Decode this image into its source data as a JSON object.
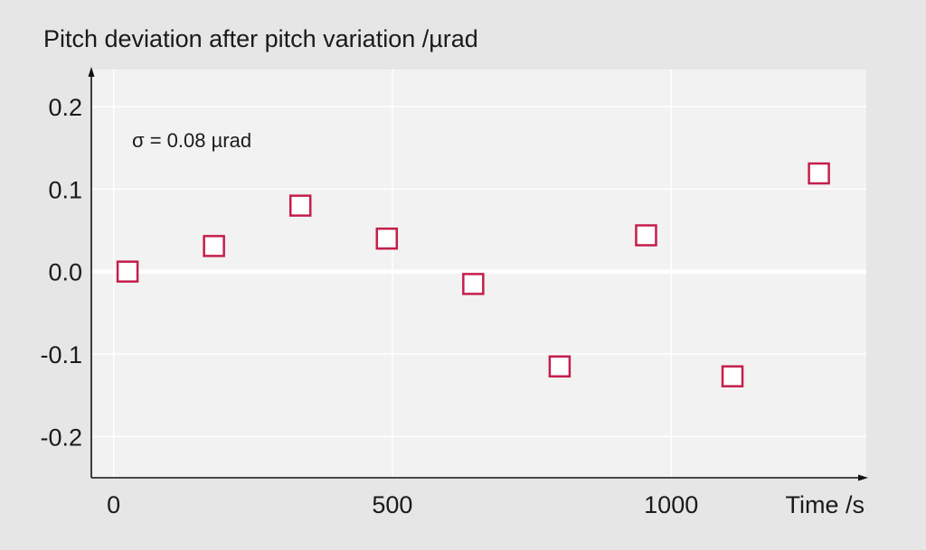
{
  "chart_data": {
    "type": "scatter",
    "title": "",
    "xlabel": "Time /s",
    "ylabel": "Pitch deviation after pitch variation /µrad",
    "annotation": "σ = 0.08 µrad",
    "xlim": [
      -40,
      1350
    ],
    "ylim": [
      -0.25,
      0.245
    ],
    "xticks": [
      0,
      500,
      1000
    ],
    "xtick_labels": [
      "0",
      "500",
      "1000"
    ],
    "yticks": [
      0.2,
      0.1,
      0.0,
      -0.1,
      -0.2
    ],
    "ytick_labels": [
      "0.2",
      "0.1",
      "0.0",
      "-0.1",
      "-0.2"
    ],
    "grid": true,
    "marker": "open-square",
    "colors": {
      "marker": "#c41e4a",
      "plot_bg": "#f2f2f2",
      "page_bg": "#e6e6e6",
      "grid": "#ffffff"
    },
    "series": [
      {
        "x": [
          25,
          180,
          335,
          490,
          645,
          800,
          955,
          1110,
          1265
        ],
        "y": [
          0.0,
          0.031,
          0.08,
          0.04,
          -0.015,
          -0.115,
          0.044,
          -0.127,
          0.119
        ]
      }
    ]
  }
}
